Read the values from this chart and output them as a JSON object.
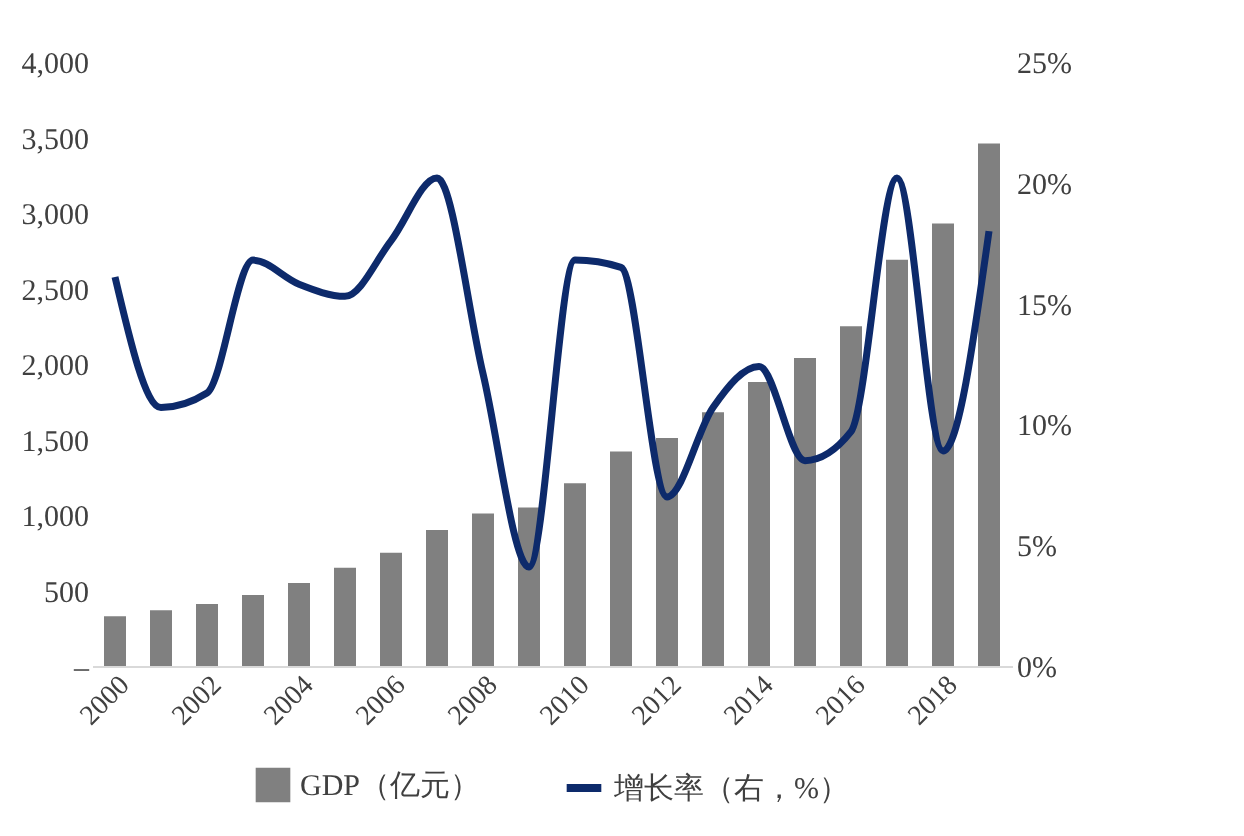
{
  "chart_data": {
    "type": "bar",
    "categories": [
      "2000",
      null,
      "2002",
      null,
      "2004",
      null,
      "2006",
      null,
      "2008",
      null,
      "2010",
      null,
      "2012",
      null,
      "2014",
      null,
      "2016",
      null,
      "2018",
      null
    ],
    "series": [
      {
        "name": "GDP（亿元）",
        "color": "#808080",
        "values": [
          330,
          370,
          410,
          470,
          550,
          650,
          750,
          900,
          1010,
          1050,
          1210,
          1420,
          1510,
          1680,
          1880,
          2040,
          2250,
          2690,
          2930,
          3460
        ]
      },
      {
        "name": "增长率（右，%）",
        "type": "line",
        "axis": "y2",
        "color": "#0d2a6b",
        "values": [
          16.1,
          10.7,
          11.3,
          16.8,
          15.8,
          15.3,
          17.6,
          20.2,
          12.1,
          4.1,
          16.8,
          16.5,
          7.0,
          10.7,
          12.4,
          8.5,
          9.7,
          20.2,
          8.9,
          18.0
        ]
      }
    ],
    "ylim": [
      0,
      4000
    ],
    "yticks": [
      {
        "value": 0,
        "label": "–"
      },
      {
        "value": 500,
        "label": "500"
      },
      {
        "value": 1000,
        "label": "1,000"
      },
      {
        "value": 1500,
        "label": "1,500"
      },
      {
        "value": 2000,
        "label": "2,000"
      },
      {
        "value": 2500,
        "label": "2,500"
      },
      {
        "value": 3000,
        "label": "3,000"
      },
      {
        "value": 3500,
        "label": "3,500"
      },
      {
        "value": 4000,
        "label": "4,000"
      }
    ],
    "y2lim": [
      0,
      25
    ],
    "y2ticks": [
      {
        "value": 0,
        "label": "0%"
      },
      {
        "value": 5,
        "label": "5%"
      },
      {
        "value": 10,
        "label": "10%"
      },
      {
        "value": 15,
        "label": "15%"
      },
      {
        "value": 20,
        "label": "20%"
      },
      {
        "value": 25,
        "label": "25%"
      }
    ],
    "legend": "bottom",
    "grid": false
  }
}
